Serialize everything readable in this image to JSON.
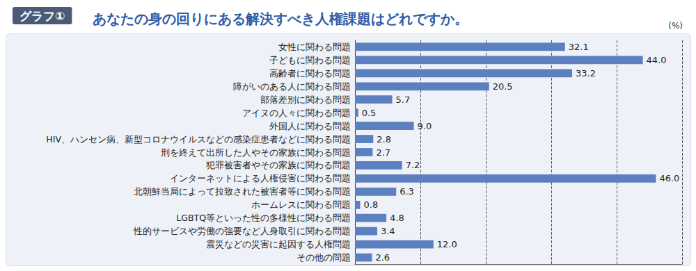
{
  "chart_data": {
    "type": "bar",
    "badge": "グラフ①",
    "title": "あなたの身の回りにある解決すべき人権課題はどれですか。",
    "unit": "(%)",
    "orientation": "horizontal",
    "categories": [
      "女性に関わる問題",
      "子どもに関わる問題",
      "高齢者に関わる問題",
      "障がいのある人に関わる問題",
      "部落差別に関わる問題",
      "アイヌの人々に関わる問題",
      "外国人に関わる問題",
      "HIV、ハンセン病、新型コロナウイルスなどの感染症患者などに関わる問題",
      "刑を終えて出所した人やその家族に関わる問題",
      "犯罪被害者やその家族に関わる問題",
      "インターネットによる人権侵害に関わる問題",
      "北朝鮮当局によって拉致された被害者等に関わる問題",
      "ホームレスに関わる問題",
      "LGBTQ等といった性の多様性に関わる問題",
      "性的サービスや労働の強要など人身取引に関わる問題",
      "震災などの災害に起因する人権問題",
      "その他の問題"
    ],
    "values": [
      32.1,
      44.0,
      33.2,
      20.5,
      5.7,
      0.5,
      9.0,
      2.8,
      2.7,
      7.2,
      46.0,
      6.3,
      0.8,
      4.8,
      3.4,
      12.0,
      2.6
    ],
    "value_labels": [
      "32.1",
      "44.0",
      "33.2",
      "20.5",
      "5.7",
      "0.5",
      "9.0",
      "2.8",
      "2.7",
      "7.2",
      "46.0",
      "6.3",
      "0.8",
      "4.8",
      "3.4",
      "12.0",
      "2.6"
    ],
    "color": "#5b7fbf",
    "xlim": [
      0,
      50
    ],
    "xticks": [
      0,
      10,
      20,
      30,
      40,
      50
    ],
    "grid": true,
    "data_labels": true,
    "tick_labels": "y"
  }
}
